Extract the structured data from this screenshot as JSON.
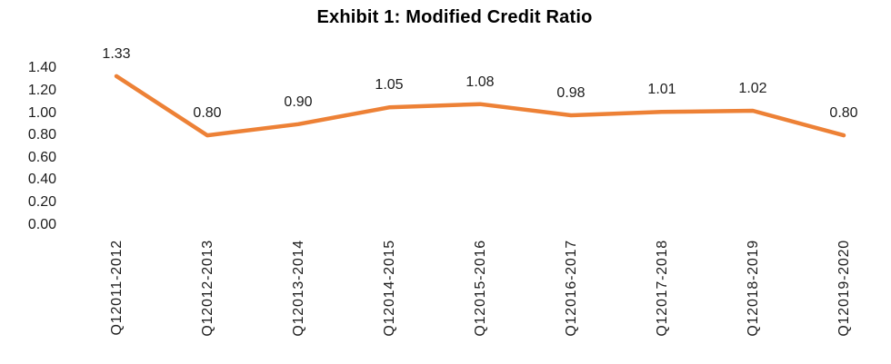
{
  "page": {
    "background": "#ffffff"
  },
  "chart_data": {
    "type": "line",
    "title": "Exhibit 1: Modified Credit Ratio",
    "categories": [
      "Q12011-2012",
      "Q12012-2013",
      "Q12013-2014",
      "Q12014-2015",
      "Q12015-2016",
      "Q12016-2017",
      "Q12017-2018",
      "Q12018-2019",
      "Q12019-2020"
    ],
    "series": [
      {
        "name": "Modified Credit Ratio",
        "values": [
          1.33,
          0.8,
          0.9,
          1.05,
          1.08,
          0.98,
          1.01,
          1.02,
          0.8
        ],
        "data_labels": [
          "1.33",
          "0.80",
          "0.90",
          "1.05",
          "1.08",
          "0.98",
          "1.01",
          "1.02",
          "0.80"
        ],
        "color": "#ED8136"
      }
    ],
    "xlabel": "",
    "ylabel": "",
    "ylim": [
      0,
      1.4
    ],
    "ytick_labels": [
      "1.40",
      "1.20",
      "1.00",
      "0.80",
      "0.60",
      "0.40",
      "0.20",
      "0.00"
    ],
    "grid": "off",
    "axis_lines": "off",
    "legend": "none",
    "text_color": "#1c1c1c",
    "title_color": "#000000"
  }
}
